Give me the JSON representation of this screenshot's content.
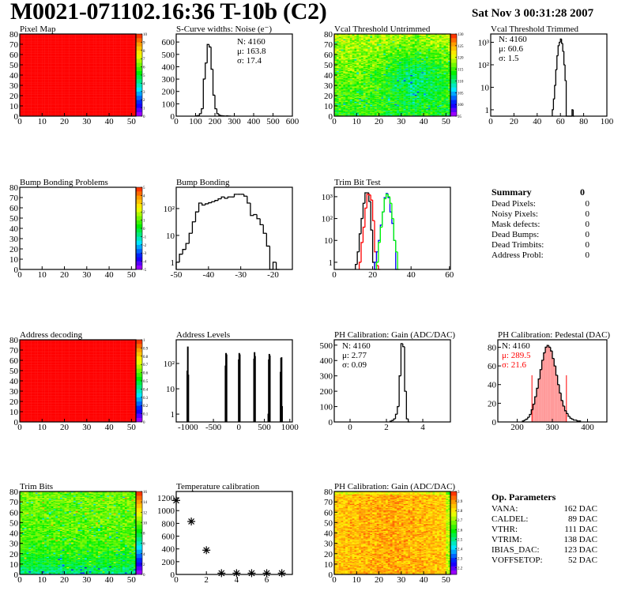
{
  "header": {
    "title": "M0021-071102.16:36 T-10b (C2)",
    "date": "Sat Nov  3 00:31:28 2007"
  },
  "summary": {
    "title": "Summary",
    "total": "0",
    "rows": [
      {
        "label": "Dead Pixels:",
        "value": "0"
      },
      {
        "label": "Noisy Pixels:",
        "value": "0"
      },
      {
        "label": "Mask defects:",
        "value": "0"
      },
      {
        "label": "Dead Bumps:",
        "value": "0"
      },
      {
        "label": "Dead Trimbits:",
        "value": "0"
      },
      {
        "label": "Address Probl:",
        "value": "0"
      }
    ]
  },
  "op_parameters": {
    "title": "Op. Parameters",
    "rows": [
      {
        "label": "VANA:",
        "value": "162 DAC"
      },
      {
        "label": "CALDEL:",
        "value": "89 DAC"
      },
      {
        "label": "VTHR:",
        "value": "111 DAC"
      },
      {
        "label": "VTRIM:",
        "value": "138 DAC"
      },
      {
        "label": "IBIAS_DAC:",
        "value": "123 DAC"
      },
      {
        "label": "VOFFSETOP:",
        "value": "52 DAC"
      }
    ]
  },
  "colors": {
    "black": "#000000",
    "red": "#ff0000",
    "blue": "#0000ff",
    "green": "#00ff00",
    "fit_fill": "#ff9a9a"
  },
  "chart_data": [
    {
      "type": "heatmap",
      "title": "Pixel Map",
      "xlim": [
        0,
        52
      ],
      "ylim": [
        0,
        80
      ],
      "zlim": [
        0,
        10
      ],
      "xticks": [
        0,
        10,
        20,
        30,
        40,
        50
      ],
      "yticks": [
        0,
        10,
        20,
        30,
        40,
        50,
        60,
        70,
        80
      ],
      "zticks": [
        0,
        1,
        2,
        3,
        4,
        5,
        6,
        7,
        8,
        9,
        10
      ],
      "uniform_value": 10
    },
    {
      "type": "histogram",
      "title": "S-Curve widths: Noise (e⁻)",
      "xlim": [
        0,
        600
      ],
      "ylim": [
        0,
        665
      ],
      "logy": false,
      "xticks": [
        0,
        100,
        200,
        300,
        400,
        500,
        600
      ],
      "yticks": [
        0,
        100,
        200,
        300,
        400,
        500,
        600
      ],
      "series": [
        {
          "color": "#000000",
          "bins": {
            "x0": 100,
            "width": 10,
            "counts": [
              2,
              5,
              20,
              60,
              300,
              430,
              580,
              560,
              380,
              170,
              60,
              20,
              8,
              4,
              2,
              1,
              2,
              1
            ]
          }
        }
      ],
      "stats": {
        "align": "right",
        "lines": [
          "N: 4160",
          "μ: 163.8",
          "σ: 17.4"
        ]
      }
    },
    {
      "type": "heatmap",
      "title": "Vcal Threshold Untrimmed",
      "xlim": [
        0,
        52
      ],
      "ylim": [
        0,
        80
      ],
      "zlim": [
        95,
        130
      ],
      "xticks": [
        0,
        10,
        20,
        30,
        40,
        50
      ],
      "yticks": [
        0,
        10,
        20,
        30,
        40,
        50,
        60,
        70,
        80
      ],
      "zticks": [
        95,
        100,
        105,
        110,
        115,
        120,
        125,
        130
      ]
    },
    {
      "type": "histogram",
      "title": "Vcal Threshold Trimmed",
      "xlim": [
        0,
        100
      ],
      "ylim": [
        0.52,
        2340
      ],
      "logy": true,
      "xticks": [
        0,
        20,
        40,
        60,
        80,
        100
      ],
      "yticks": [
        1,
        10,
        100,
        1000
      ],
      "ytick_labels": [
        "1",
        "10",
        "10²",
        "10³"
      ],
      "series": [
        {
          "color": "#000000",
          "bins": {
            "x0": 53,
            "width": 1,
            "counts": [
              1,
              3,
              12,
              60,
              250,
              700,
              1000,
              1400,
              900,
              400,
              100,
              20,
              0,
              0,
              0,
              0,
              0,
              1,
              0
            ]
          }
        }
      ],
      "stats": {
        "align": "left",
        "lines": [
          "N: 4160",
          "μ: 60.6",
          "σ:  1.5"
        ]
      }
    },
    {
      "type": "heatmap",
      "title": "Bump Bonding Problems",
      "xlim": [
        0,
        52
      ],
      "ylim": [
        0,
        80
      ],
      "zlim": [
        -5,
        5
      ],
      "xticks": [
        0,
        10,
        20,
        30,
        40,
        50
      ],
      "yticks": [
        0,
        10,
        20,
        30,
        40,
        50,
        60,
        70,
        80
      ],
      "zticks": [
        -5,
        -4,
        -3,
        -2,
        -1,
        0,
        1,
        2,
        3,
        4,
        5
      ],
      "empty": true
    },
    {
      "type": "histogram",
      "title": "Bump Bonding",
      "xlim": [
        -50,
        -14
      ],
      "ylim": [
        0.54,
        620
      ],
      "logy": true,
      "xticks": [
        -50,
        -40,
        -30,
        -20
      ],
      "yticks": [
        1,
        10,
        100
      ],
      "ytick_labels": [
        "1",
        "10",
        "10²"
      ],
      "series": [
        {
          "color": "#000000",
          "bins": {
            "x0": -50,
            "width": 1,
            "counts": [
              1,
              2,
              3,
              5,
              12,
              32,
              75,
              160,
              135,
              150,
              165,
              180,
              200,
              230,
              270,
              240,
              270,
              270,
              340,
              340,
              340,
              290,
              160,
              55,
              60,
              42,
              25,
              12,
              4,
              0,
              1,
              0
            ]
          }
        }
      ]
    },
    {
      "type": "histogram",
      "title": "Trim Bit Test",
      "xlim": [
        0,
        60.5
      ],
      "ylim": [
        0.47,
        2690
      ],
      "logy": true,
      "xticks": [
        0,
        20,
        40,
        60
      ],
      "yticks": [
        1,
        10,
        100,
        1000
      ],
      "ytick_labels": [
        "1",
        "10",
        "10²",
        "10³"
      ],
      "series": [
        {
          "color": "#000000",
          "bins": {
            "x0": 11,
            "width": 1,
            "counts": [
              0.8,
              3,
              20,
              100,
              500,
              1500,
              1500,
              600,
              30,
              1,
              0
            ]
          }
        },
        {
          "color": "#ff0000",
          "bins": {
            "x0": 13,
            "width": 1,
            "counts": [
              1,
              8,
              40,
              300,
              1300,
              1200,
              700,
              80,
              3,
              0.7,
              0
            ]
          }
        },
        {
          "color": "#0000ff",
          "bins": {
            "x0": 21,
            "width": 1,
            "counts": [
              1,
              3,
              10,
              50,
              200,
              900,
              1400,
              900,
              200,
              60,
              10,
              0
            ]
          }
        },
        {
          "color": "#00ff00",
          "bins": {
            "x0": 22,
            "width": 1,
            "counts": [
              1,
              8,
              40,
              200,
              800,
              1300,
              1000,
              500,
              100,
              10,
              3,
              0
            ]
          }
        }
      ]
    },
    {
      "type": "heatmap",
      "title": "Address decoding",
      "xlim": [
        0,
        52
      ],
      "ylim": [
        0,
        80
      ],
      "zlim": [
        0,
        1
      ],
      "xticks": [
        0,
        10,
        20,
        30,
        40,
        50
      ],
      "yticks": [
        0,
        10,
        20,
        30,
        40,
        50,
        60,
        70,
        80
      ],
      "zticks": [
        0,
        0.1,
        0.2,
        0.3,
        0.4,
        0.5,
        0.6,
        0.7,
        0.8,
        0.9,
        1
      ],
      "uniform_value": 1
    },
    {
      "type": "histogram",
      "title": "Address Levels",
      "xlim": [
        -1230,
        1050
      ],
      "ylim": [
        0.49,
        865
      ],
      "logy": true,
      "xticks": [
        -1000,
        -500,
        0,
        500,
        1000
      ],
      "yticks": [
        1,
        10,
        100
      ],
      "ytick_labels": [
        "1",
        "10",
        "10²"
      ],
      "series": [
        {
          "color": "#000000",
          "peaks_width": 10,
          "peaks": [
            [
              -1015,
              50
            ],
            [
              -1005,
              450
            ],
            [
              -995,
              35
            ],
            [
              -265,
              80
            ],
            [
              -255,
              250
            ],
            [
              -245,
              220
            ],
            [
              -5,
              140
            ],
            [
              5,
              250
            ],
            [
              15,
              220
            ],
            [
              295,
              150
            ],
            [
              305,
              270
            ],
            [
              315,
              190
            ],
            [
              575,
              1
            ],
            [
              585,
              140
            ],
            [
              595,
              230
            ],
            [
              605,
              200
            ],
            [
              815,
              45
            ],
            [
              825,
              160
            ],
            [
              835,
              170
            ],
            [
              845,
              2
            ]
          ]
        }
      ]
    },
    {
      "type": "histogram",
      "title": "PH Calibration: Gain (ADC/DAC)",
      "xlim": [
        -0.87,
        5.52
      ],
      "ylim": [
        0,
        535
      ],
      "logy": false,
      "xticks": [
        0,
        2,
        4
      ],
      "yticks": [
        0,
        100,
        200,
        300,
        400,
        500
      ],
      "series": [
        {
          "color": "#000000",
          "bins": {
            "x0": 2.2,
            "width": 0.1,
            "counts": [
              5,
              10,
              20,
              50,
              100,
              300,
              510,
              490,
              200,
              20,
              0
            ]
          }
        }
      ],
      "stats": {
        "align": "left",
        "lines": [
          "N: 4160",
          "μ: 2.77",
          "σ: 0.09"
        ]
      }
    },
    {
      "type": "histogram",
      "title": "PH Calibration: Pedestal (DAC)",
      "xlim": [
        145,
        455
      ],
      "ylim": [
        0,
        88
      ],
      "logy": false,
      "xticks": [
        200,
        300,
        400
      ],
      "yticks": [
        0,
        20,
        40,
        60,
        80
      ],
      "series": [
        {
          "color": "#000000",
          "bins": {
            "x0": 215,
            "width": 5,
            "counts": [
              1,
              2,
              3,
              5,
              8,
              13,
              19,
              27,
              36,
              46,
              56,
              66,
              74,
              80,
              82,
              80,
              76,
              68,
              60,
              50,
              40,
              31,
              23,
              17,
              12,
              9,
              6,
              4,
              3,
              2,
              2,
              1,
              1
            ]
          }
        }
      ],
      "fit_range": [
        242,
        340
      ],
      "fit_line_height": 50,
      "stats": {
        "align": "left",
        "lines": [
          "N: 4160",
          "μ: 289.5",
          "σ: 21.6"
        ],
        "line_colors": [
          "#000000",
          "#ff0000",
          "#ff0000"
        ]
      }
    },
    {
      "type": "heatmap",
      "title": "Trim Bits",
      "xlim": [
        0,
        52
      ],
      "ylim": [
        0,
        80
      ],
      "zlim": [
        0,
        16
      ],
      "xticks": [
        0,
        10,
        20,
        30,
        40,
        50
      ],
      "yticks": [
        0,
        10,
        20,
        30,
        40,
        50,
        60,
        70,
        80
      ],
      "zticks": [
        0,
        2,
        4,
        6,
        8,
        10,
        12,
        14,
        16
      ]
    },
    {
      "type": "scatter",
      "title": "Temperature calibration",
      "xlim": [
        0,
        7.7
      ],
      "ylim": [
        0,
        1300
      ],
      "xticks": [
        0,
        2,
        4,
        6
      ],
      "yticks": [
        0,
        200,
        400,
        600,
        800,
        1000,
        1200
      ],
      "x": [
        0,
        1,
        2,
        3,
        4,
        5,
        6,
        7
      ],
      "y": [
        1160,
        830,
        380,
        20,
        20,
        20,
        20,
        20
      ],
      "marker": "star"
    },
    {
      "type": "heatmap",
      "title": "PH Calibration: Gain (ADC/DAC)",
      "xlim": [
        0,
        52
      ],
      "ylim": [
        0,
        80
      ],
      "zlim": [
        2.13,
        3.0
      ],
      "xticks": [
        0,
        10,
        20,
        30,
        40,
        50
      ],
      "yticks": [
        0,
        10,
        20,
        30,
        40,
        50,
        60,
        70,
        80
      ],
      "zticks": [
        2.2,
        2.3,
        2.4,
        2.5,
        2.6,
        2.7,
        2.8,
        2.9,
        3
      ]
    }
  ]
}
